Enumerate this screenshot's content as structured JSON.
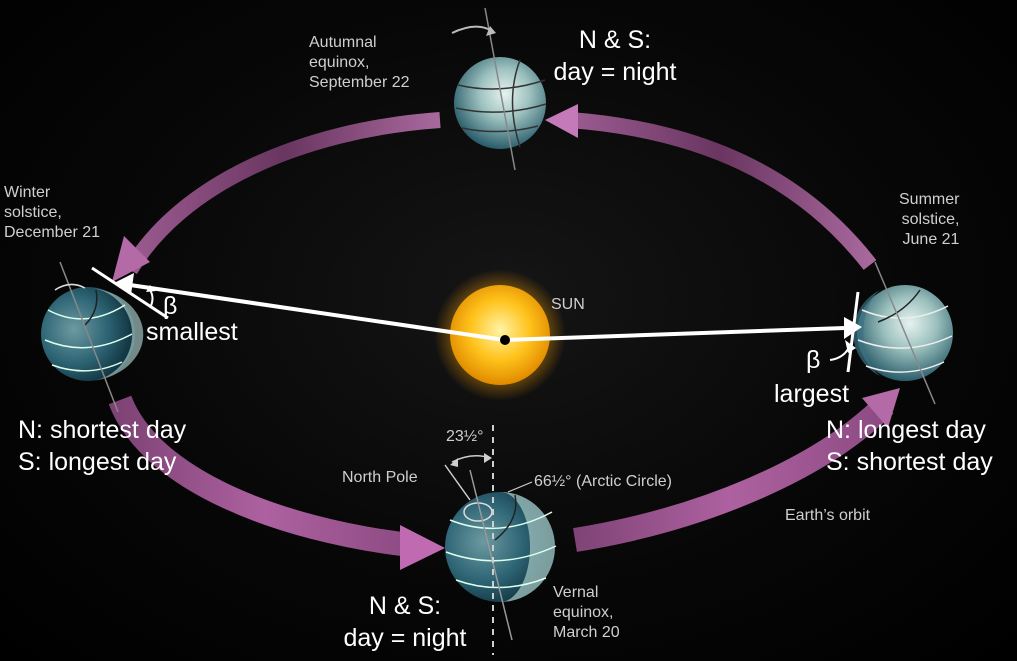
{
  "colors": {
    "orbit": "#b56aa8",
    "sun": "#ffc21a",
    "arrow_line": "#ffffff",
    "earth_ocean": "#2f6f80",
    "earth_light": "#d9ece9",
    "label": "#cfcfcf"
  },
  "labels": {
    "autumnal": "Autumnal\nequinox,\nSeptember 22",
    "winter": "Winter\nsolstice,\nDecember 21",
    "summer": "Summer\nsolstice,\nJune 21",
    "vernal": "Vernal\nequinox,\nMarch 20",
    "sun": "SUN",
    "north_pole": "North Pole",
    "tilt_angle": "23½°",
    "arctic_circle": "66½° (Arctic Circle)",
    "orbit": "Earth’s orbit"
  },
  "annotations": {
    "autumn_state": "N & S:\nday = night",
    "vernal_state": "N & S:\nday = night",
    "winter_state": "N: shortest day\nS: longest day",
    "summer_state": "N: longest day\nS: shortest day",
    "beta_winter": "β",
    "beta_summer": "β",
    "smallest": "smallest",
    "largest": "largest"
  }
}
